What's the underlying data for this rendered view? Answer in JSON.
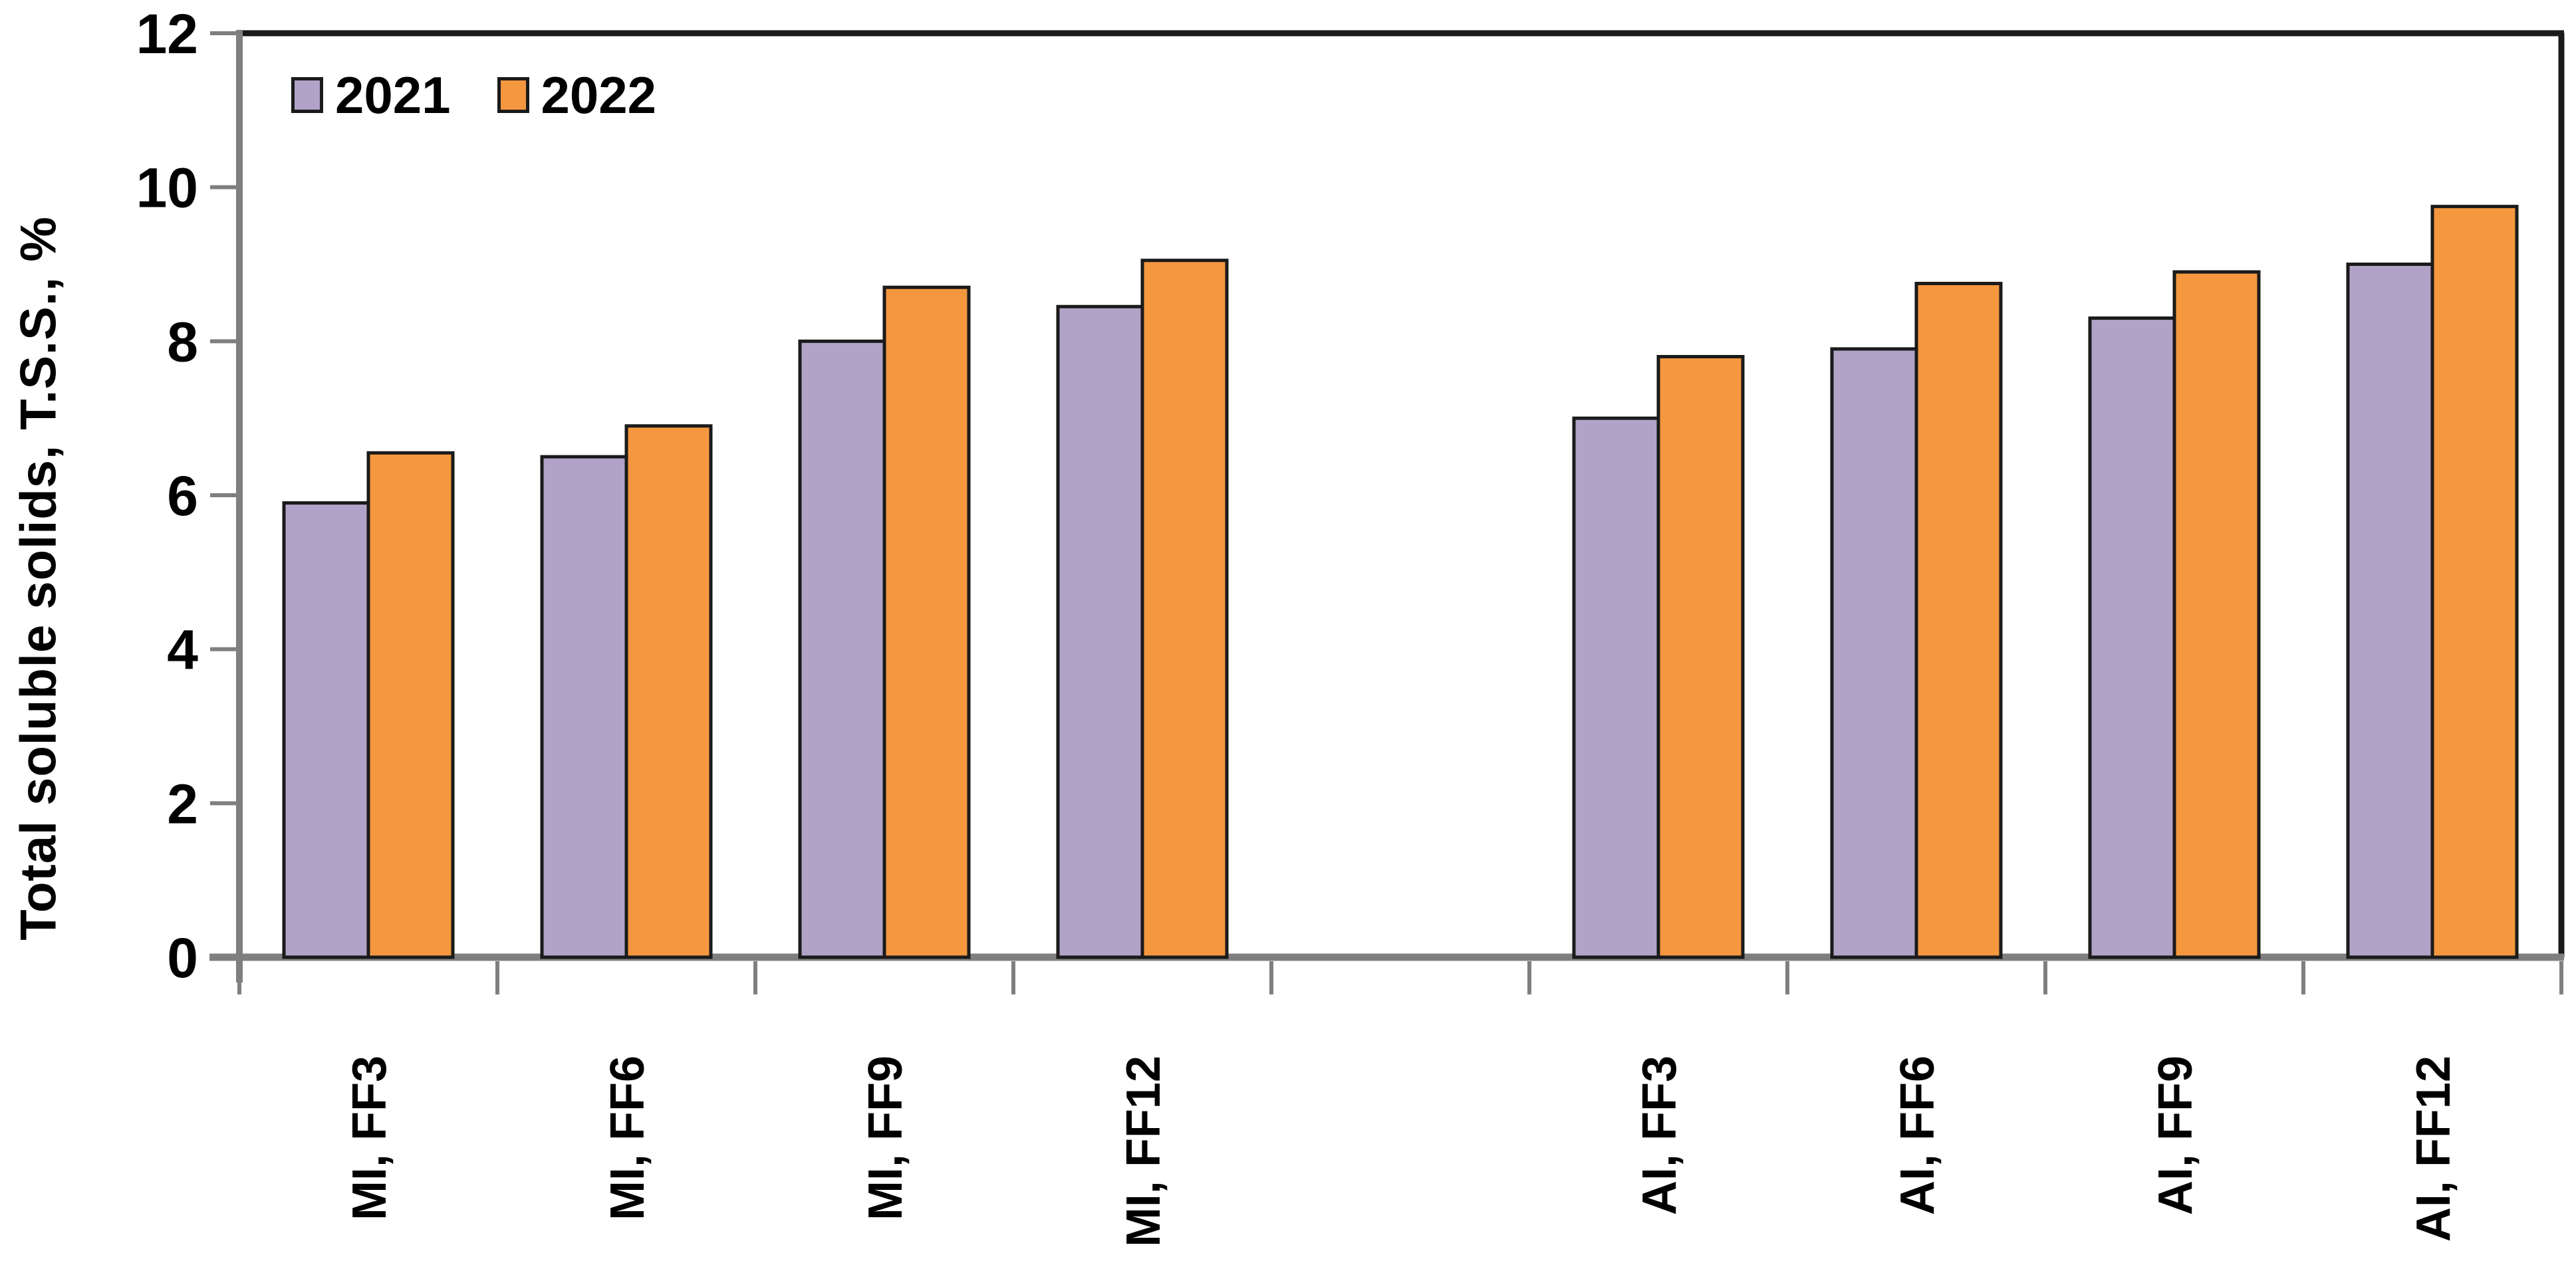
{
  "chart_data": {
    "type": "bar",
    "title": "",
    "xlabel": "",
    "ylabel": "Total soluble solids, T.S.S., %",
    "ylim": [
      0,
      12
    ],
    "ytick_step": 2,
    "ytick_labels": [
      "0",
      "2",
      "4",
      "6",
      "8",
      "10",
      "12"
    ],
    "grid": false,
    "legend_position": "top-left",
    "categories": [
      "MI, FF3",
      "MI, FF6",
      "MI, FF9",
      "MI, FF12",
      "AI, FF3",
      "AI, FF6",
      "AI, FF9",
      "AI, FF12"
    ],
    "series": [
      {
        "name": "2021",
        "color": "#B1A2C8",
        "values": [
          5.9,
          6.5,
          8.0,
          8.45,
          7.0,
          7.9,
          8.3,
          9.0
        ]
      },
      {
        "name": "2022",
        "color": "#F4973F",
        "values": [
          6.55,
          6.9,
          8.7,
          9.05,
          7.8,
          8.75,
          8.9,
          9.75
        ]
      }
    ],
    "group_gap_after_index": 3,
    "colors": {
      "axis_line": "#7f7f7f",
      "tick_mark": "#7f7f7f",
      "frame_border": "#1a1a1a",
      "bar_outline": "#1a1a1a",
      "text": "#000000",
      "background": "#ffffff"
    }
  }
}
